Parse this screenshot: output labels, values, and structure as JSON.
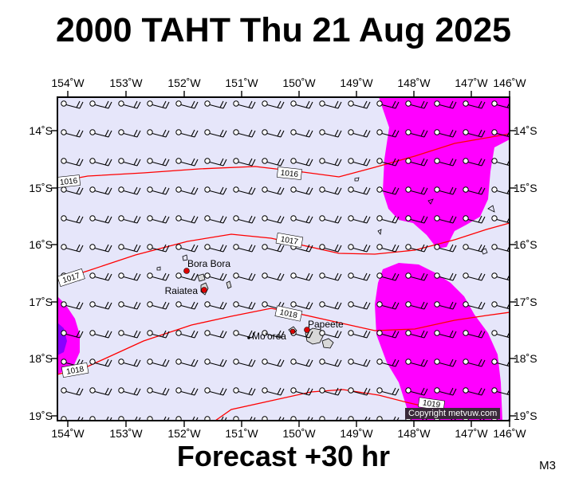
{
  "header": {
    "title": "2000 TAHT Thu 21 Aug 2025"
  },
  "footer": {
    "forecast": "Forecast +30 hr",
    "model_code": "M3",
    "copyright": "Copyright metvuw.com"
  },
  "axes": {
    "longitude_labels": [
      "154˚W",
      "153˚W",
      "152˚W",
      "151˚W",
      "150˚W",
      "149˚W",
      "148˚W",
      "147˚W",
      "146˚W"
    ],
    "latitude_labels_left": [
      "14˚S",
      "15˚S",
      "16˚S",
      "17˚S",
      "18˚S",
      "19˚S"
    ],
    "latitude_labels_right": [
      "14˚S",
      "15˚S",
      "16˚S",
      "17˚S",
      "18˚S",
      "19˚S"
    ]
  },
  "places": [
    {
      "name": "Bora Bora"
    },
    {
      "name": "Raiatea"
    },
    {
      "name": "Papeete"
    },
    {
      "name": "Mo'orea"
    }
  ],
  "isobar_labels": [
    "1016",
    "1016",
    "1017",
    "1017",
    "1018",
    "1018",
    "1019"
  ],
  "colors": {
    "sea": "#e6e6fa",
    "precip": "#ff00ff",
    "precip_edge": "#8a00ff",
    "isobar": "#ff0000",
    "town": "#dd0000",
    "land": "#d8d8d8"
  },
  "icons": [
    "wind-barb-icon"
  ]
}
